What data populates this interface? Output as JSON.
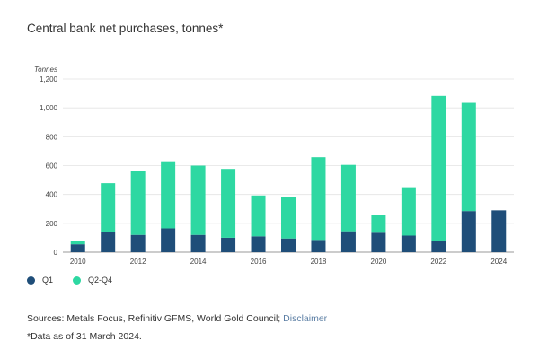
{
  "page": {
    "title": "Central bank net purchases, tonnes*",
    "sources_label": "Sources: Metals Focus, Refinitiv GFMS, World Gold Council;",
    "disclaimer_link": "Disclaimer",
    "footnote": "*Data as of 31 March 2024."
  },
  "colors": {
    "q1": "#1f4e79",
    "q2_q4": "#2ed8a2",
    "grid": "#e3e3e3",
    "axis": "#9a9a9a"
  },
  "chart_data": {
    "type": "bar",
    "stacked": true,
    "title": "Central bank net purchases, tonnes*",
    "ylabel": "Tonnes",
    "xlabel": "",
    "categories": [
      "2010",
      "2011",
      "2012",
      "2013",
      "2014",
      "2015",
      "2016",
      "2017",
      "2018",
      "2019",
      "2020",
      "2021",
      "2022",
      "2023",
      "2024"
    ],
    "x_tick_labels": [
      "2010",
      "2012",
      "2014",
      "2016",
      "2018",
      "2020",
      "2022",
      "2024"
    ],
    "ylim": [
      0,
      1200
    ],
    "y_ticks": [
      0,
      200,
      400,
      600,
      800,
      1000,
      1200
    ],
    "y_tick_labels": [
      "0",
      "200",
      "400",
      "600",
      "800",
      "1,000",
      "1,200"
    ],
    "grid": true,
    "legend_position": "bottom-left",
    "series": [
      {
        "name": "Q1",
        "values": [
          55,
          140,
          120,
          165,
          120,
          100,
          110,
          95,
          85,
          145,
          135,
          115,
          78,
          285,
          290
        ]
      },
      {
        "name": "Q2-Q4",
        "values": [
          25,
          338,
          445,
          465,
          480,
          477,
          283,
          285,
          573,
          460,
          120,
          335,
          1005,
          750,
          0
        ]
      }
    ]
  }
}
